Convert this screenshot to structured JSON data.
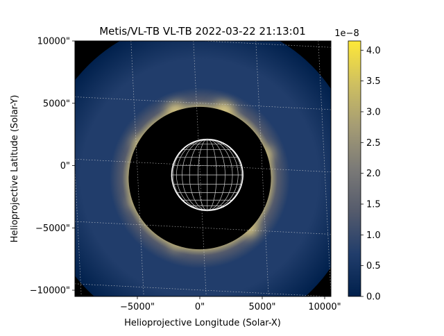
{
  "chart_data": {
    "type": "heatmap",
    "title": "Metis/VL-TB VL-TB 2022-03-22 21:13:01",
    "xlabel": "Helioprojective Longitude (Solar-X)",
    "ylabel": "Helioprojective Latitude (Solar-Y)",
    "xlim": [
      -10000,
      10500
    ],
    "ylim": [
      -10500,
      10000
    ],
    "xticks": [
      {
        "value": -5000,
        "label": "−5000\""
      },
      {
        "value": 0,
        "label": "0\""
      },
      {
        "value": 5000,
        "label": "5000\""
      },
      {
        "value": 10000,
        "label": "10000\""
      }
    ],
    "yticks": [
      {
        "value": 10000,
        "label": "10000\""
      },
      {
        "value": 5000,
        "label": "5000\""
      },
      {
        "value": 0,
        "label": "0\""
      },
      {
        "value": -5000,
        "label": "−5000\""
      },
      {
        "value": -10000,
        "label": "−10000\""
      }
    ],
    "occulter": {
      "center": [
        0,
        -1000
      ],
      "radius": 5700
    },
    "sun": {
      "center": [
        600,
        -750
      ],
      "radius": 2850
    },
    "field_of_view": {
      "center": [
        0,
        -1000
      ],
      "radius": 12700
    },
    "coronal_brightness": [
      {
        "position_angle_deg": 20,
        "relative": 0.95
      },
      {
        "position_angle_deg": 70,
        "relative": 0.55
      },
      {
        "position_angle_deg": 135,
        "relative": 0.75
      },
      {
        "position_angle_deg": 200,
        "relative": 0.35
      },
      {
        "position_angle_deg": 250,
        "relative": 0.3
      },
      {
        "position_angle_deg": 300,
        "relative": 0.45
      },
      {
        "position_angle_deg": 340,
        "relative": 0.85
      }
    ],
    "colorbar": {
      "min": 0.0,
      "max": 4.15,
      "scale_label": "1e−8",
      "ticks": [
        "0.0",
        "0.5",
        "1.0",
        "1.5",
        "2.0",
        "2.5",
        "3.0",
        "3.5",
        "4.0"
      ],
      "colormap": "cividis",
      "colors": [
        "#00204c",
        "#213d6b",
        "#555b6c",
        "#7b7a77",
        "#a59c74",
        "#cfc060",
        "#fee838"
      ]
    },
    "grid": true,
    "grid_color": "#d8d8d8"
  }
}
